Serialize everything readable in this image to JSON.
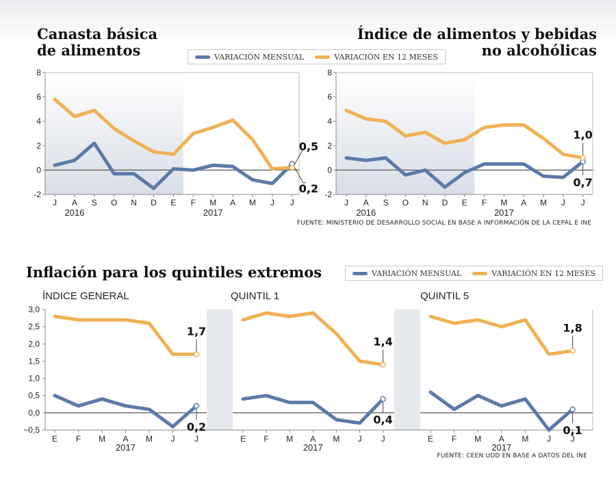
{
  "page": {
    "title_left": [
      "Canasta básica",
      "de alimentos"
    ],
    "title_right": [
      "Índice de alimentos y bebidas",
      "no alcohólicas"
    ],
    "title_bottom": "Inflación para los quintiles extremos",
    "legend": {
      "monthly": "VARIACIÓN MENSUAL",
      "annual": "VARIACIÓN EN 12 MESES"
    },
    "source_top": "FUENTE: MINISTERIO DE DESARROLLO SOCIAL EN BASE A INFORMACIÓN DE LA CEPAL E INE",
    "source_bottom": "FUENTE: CEEN UDD EN BASE A DATOS DEL INE",
    "colors": {
      "monthly": "#5b7aa8",
      "annual": "#f0b155",
      "shade": "#e6e9ee",
      "zero_line": "#555555"
    }
  },
  "chart_data": [
    {
      "type": "line",
      "title": "Canasta básica de alimentos",
      "categories": [
        "J",
        "A",
        "S",
        "O",
        "N",
        "D",
        "E",
        "F",
        "M",
        "A",
        "M",
        "J",
        "J"
      ],
      "year_labels": [
        {
          "label": "2016",
          "at": 1
        },
        {
          "label": "2017",
          "at": 8
        }
      ],
      "ylim": [
        -2,
        8
      ],
      "yticks": [
        {
          "v": -2,
          "label": "-2"
        },
        {
          "v": 0,
          "label": "0"
        },
        {
          "v": 2,
          "label": "2"
        },
        {
          "v": 4,
          "label": "4"
        },
        {
          "v": 6,
          "label": "6"
        },
        {
          "v": 8,
          "label": "8"
        }
      ],
      "shade_range": [
        0,
        6
      ],
      "series": [
        {
          "name": "VARIACIÓN MENSUAL",
          "key": "monthly",
          "values": [
            0.4,
            0.8,
            2.2,
            -0.3,
            -0.3,
            -1.5,
            0.1,
            0.0,
            0.4,
            0.3,
            -0.8,
            -1.1,
            0.5
          ]
        },
        {
          "name": "VARIACIÓN EN 12 MESES",
          "key": "annual",
          "values": [
            5.8,
            4.4,
            4.9,
            3.4,
            2.4,
            1.5,
            1.3,
            3.0,
            3.5,
            4.1,
            2.5,
            0.1,
            0.2
          ]
        }
      ],
      "annotations": [
        {
          "label": "0,5",
          "series": "monthly"
        },
        {
          "label": "0,2",
          "series": "annual"
        }
      ]
    },
    {
      "type": "line",
      "title": "Índice de alimentos y bebidas no alcohólicas",
      "categories": [
        "J",
        "A",
        "S",
        "O",
        "N",
        "D",
        "E",
        "F",
        "M",
        "A",
        "M",
        "J",
        "J"
      ],
      "year_labels": [
        {
          "label": "2016",
          "at": 1
        },
        {
          "label": "2017",
          "at": 8
        }
      ],
      "ylim": [
        -2,
        8
      ],
      "yticks": [
        {
          "v": -2,
          "label": "-2"
        },
        {
          "v": 0,
          "label": "0"
        },
        {
          "v": 2,
          "label": "2"
        },
        {
          "v": 4,
          "label": "4"
        },
        {
          "v": 6,
          "label": "6"
        },
        {
          "v": 8,
          "label": "8"
        }
      ],
      "shade_range": [
        0,
        6
      ],
      "series": [
        {
          "name": "VARIACIÓN MENSUAL",
          "key": "monthly",
          "values": [
            1.0,
            0.8,
            1.0,
            -0.4,
            0.0,
            -1.4,
            -0.2,
            0.5,
            0.5,
            0.5,
            -0.5,
            -0.6,
            0.7
          ]
        },
        {
          "name": "VARIACIÓN EN 12 MESES",
          "key": "annual",
          "values": [
            4.9,
            4.2,
            4.0,
            2.8,
            3.1,
            2.2,
            2.5,
            3.5,
            3.7,
            3.7,
            2.6,
            1.3,
            1.0
          ]
        }
      ],
      "annotations": [
        {
          "label": "1,0",
          "series": "annual"
        },
        {
          "label": "0,7",
          "series": "monthly"
        }
      ]
    },
    {
      "type": "line",
      "title": "ÍNDICE GENERAL",
      "categories": [
        "E",
        "F",
        "M",
        "A",
        "M",
        "J",
        "J"
      ],
      "year_labels": [
        {
          "label": "2017",
          "at": 3
        }
      ],
      "ylim": [
        -0.5,
        3.0
      ],
      "series": [
        {
          "name": "VARIACIÓN MENSUAL",
          "key": "monthly",
          "values": [
            0.5,
            0.2,
            0.4,
            0.2,
            0.1,
            -0.4,
            0.2
          ]
        },
        {
          "name": "VARIACIÓN EN 12 MESES",
          "key": "annual",
          "values": [
            2.8,
            2.7,
            2.7,
            2.7,
            2.6,
            1.7,
            1.7
          ]
        }
      ],
      "annotations": [
        {
          "label": "1,7",
          "series": "annual"
        },
        {
          "label": "0,2",
          "series": "monthly"
        }
      ]
    },
    {
      "type": "line",
      "title": "QUINTIL 1",
      "categories": [
        "E",
        "F",
        "M",
        "A",
        "M",
        "J",
        "J"
      ],
      "year_labels": [
        {
          "label": "2017",
          "at": 3
        }
      ],
      "ylim": [
        -0.5,
        3.0
      ],
      "series": [
        {
          "name": "VARIACIÓN MENSUAL",
          "key": "monthly",
          "values": [
            0.4,
            0.5,
            0.3,
            0.3,
            -0.2,
            -0.3,
            0.4
          ]
        },
        {
          "name": "VARIACIÓN EN 12 MESES",
          "key": "annual",
          "values": [
            2.7,
            2.9,
            2.8,
            2.9,
            2.3,
            1.5,
            1.4
          ]
        }
      ],
      "annotations": [
        {
          "label": "1,4",
          "series": "annual"
        },
        {
          "label": "0,4",
          "series": "monthly"
        }
      ]
    },
    {
      "type": "line",
      "title": "QUINTIL 5",
      "categories": [
        "E",
        "F",
        "M",
        "A",
        "M",
        "J",
        "J"
      ],
      "year_labels": [
        {
          "label": "2017",
          "at": 3
        }
      ],
      "ylim": [
        -0.5,
        3.0
      ],
      "series": [
        {
          "name": "VARIACIÓN MENSUAL",
          "key": "monthly",
          "values": [
            0.6,
            0.1,
            0.5,
            0.2,
            0.4,
            -0.5,
            0.1
          ]
        },
        {
          "name": "VARIACIÓN EN 12 MESES",
          "key": "annual",
          "values": [
            2.8,
            2.6,
            2.7,
            2.5,
            2.7,
            1.7,
            1.8
          ]
        }
      ],
      "annotations": [
        {
          "label": "1,8",
          "series": "annual"
        },
        {
          "label": "0,1",
          "series": "monthly"
        }
      ]
    }
  ],
  "bottom_axis": {
    "yticks": [
      {
        "v": -0.5,
        "label": "−0,5"
      },
      {
        "v": 0.0,
        "label": "0,0"
      },
      {
        "v": 0.5,
        "label": "0,5"
      },
      {
        "v": 1.0,
        "label": "1,0"
      },
      {
        "v": 1.5,
        "label": "1,5"
      },
      {
        "v": 2.0,
        "label": "2,0"
      },
      {
        "v": 2.5,
        "label": "2,5"
      },
      {
        "v": 3.0,
        "label": "3,0"
      }
    ]
  }
}
